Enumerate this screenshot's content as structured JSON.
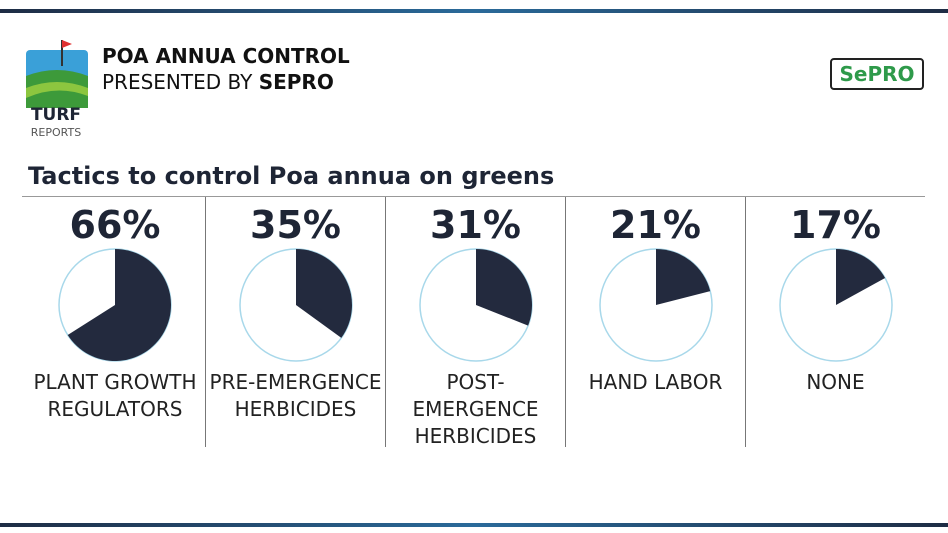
{
  "header": {
    "title": "POA ANNUA CONTROL",
    "subtitle_prefix": "PRESENTED BY",
    "subtitle_brand": "SEPRO",
    "logo_top": "TURF",
    "logo_bottom": "REPORTS",
    "sponsor_logo": "SePRO"
  },
  "chart_data": {
    "type": "pie",
    "title": "Tactics to control Poa annua on greens",
    "categories": [
      "PLANT GROWTH REGULATORS",
      "PRE-EMERGENCE HERBICIDES",
      "POST-EMERGENCE HERBICIDES",
      "HAND LABOR",
      "NONE"
    ],
    "values": [
      66,
      35,
      31,
      21,
      17
    ],
    "value_labels": [
      "66%",
      "35%",
      "31%",
      "21%",
      "17%"
    ],
    "color": "#232a3e",
    "rest_color": "#ffffff",
    "outline_color": "#a8d8ea"
  }
}
